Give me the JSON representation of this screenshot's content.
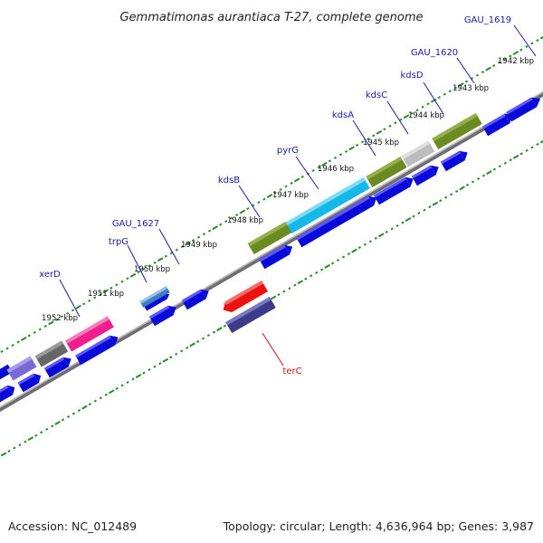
{
  "header": {
    "title": "Gemmatimonas aurantiaca T-27, complete genome"
  },
  "footer": {
    "accession": "Accession: NC_012489",
    "summary": "Topology: circular; Length: 4,636,964 bp; Genes: 3,987"
  },
  "colors": {
    "backbone": "#8a8a8e",
    "tick": "#2a8a2a",
    "forward_cds": "#0a0ad8",
    "gene_label_forward": "#1a1aa8",
    "gene_label_reverse": "#cc1111"
  },
  "scale": {
    "unit": "kbp",
    "ticks": [
      {
        "value": 1942,
        "label": "1942 kbp"
      },
      {
        "value": 1943,
        "label": "1943 kbp"
      },
      {
        "value": 1944,
        "label": "1944 kbp"
      },
      {
        "value": 1945,
        "label": "1945 kbp"
      },
      {
        "value": 1946,
        "label": "1946 kbp"
      },
      {
        "value": 1947,
        "label": "1947 kbp"
      },
      {
        "value": 1948,
        "label": "1948 kbp"
      },
      {
        "value": 1949,
        "label": "1949 kbp"
      },
      {
        "value": 1950,
        "label": "1950 kbp"
      },
      {
        "value": 1951,
        "label": "1951 kbp"
      },
      {
        "value": 1952,
        "label": "1952 kbp"
      }
    ]
  },
  "genes": [
    {
      "id": "gau1619",
      "name": "GAU_1619",
      "strand": "reverse-scale",
      "color": "#0a0ad8"
    },
    {
      "id": "gau1620",
      "name": "GAU_1620",
      "strand": "forward-scale",
      "color": "#6b8a22"
    },
    {
      "id": "kdsD",
      "name": "kdsD",
      "strand": "forward-scale",
      "color": "#6b8a22"
    },
    {
      "id": "kdsC",
      "name": "kdsC",
      "strand": "forward-scale",
      "color": "#bdbdbd"
    },
    {
      "id": "kdsA",
      "name": "kdsA",
      "strand": "forward-scale",
      "color": "#6b8a22"
    },
    {
      "id": "pyrG",
      "name": "pyrG",
      "strand": "forward-scale",
      "color": "#15b8e6"
    },
    {
      "id": "kdsB",
      "name": "kdsB",
      "strand": "forward-scale",
      "color": "#6b8a22"
    },
    {
      "id": "gau1627",
      "name": "GAU_1627",
      "strand": "forward-scale",
      "color": "#3f7fc0"
    },
    {
      "id": "trpG",
      "name": "trpG",
      "strand": "forward-scale",
      "color": "#3f7fc0"
    },
    {
      "id": "xerD",
      "name": "xerD",
      "strand": "forward-scale",
      "color": "#ee1e8e"
    },
    {
      "id": "terC",
      "name": "terC",
      "strand": "reverse",
      "color": "#ee1111"
    }
  ]
}
